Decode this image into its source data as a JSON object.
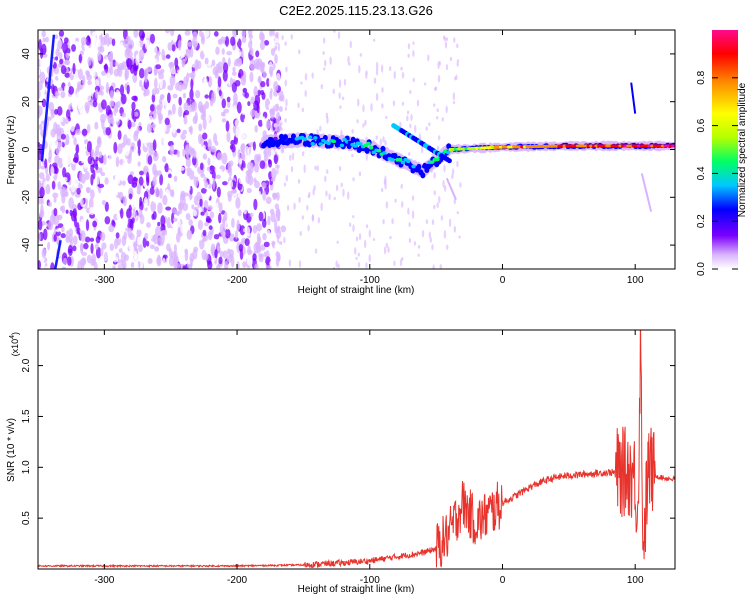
{
  "title": "C2E2.2025.115.23.13.G26",
  "chart_data": [
    {
      "type": "heatmap",
      "xlabel": "Height of straight line (km)",
      "ylabel": "Frequency (Hz)",
      "xlim": [
        -350,
        130
      ],
      "ylim": [
        -50,
        50
      ],
      "xticks": [
        -300,
        -200,
        -100,
        0,
        100
      ],
      "yticks": [
        -40,
        -20,
        0,
        20,
        40
      ],
      "colorbar": {
        "label": "Normalized spectral amplitude",
        "range": [
          0,
          1
        ],
        "ticks": [
          "0.0",
          "0.2",
          "0.4",
          "0.6",
          "0.8"
        ],
        "colors": [
          "#ffffff",
          "#d9b3ff",
          "#7a00ff",
          "#0000ff",
          "#00c8ff",
          "#00ff64",
          "#b4ff00",
          "#ffff00",
          "#ff8c00",
          "#ff0000",
          "#ff0a8c"
        ]
      },
      "signal_trace": [
        {
          "x": -180,
          "y": 3,
          "amp": 0.3
        },
        {
          "x": -150,
          "y": 4,
          "amp": 0.35
        },
        {
          "x": -120,
          "y": 3,
          "amp": 0.4
        },
        {
          "x": -100,
          "y": 1,
          "amp": 0.45
        },
        {
          "x": -80,
          "y": -4,
          "amp": 0.4
        },
        {
          "x": -60,
          "y": -9,
          "amp": 0.35
        },
        {
          "x": -40,
          "y": 0,
          "amp": 0.5
        },
        {
          "x": 0,
          "y": 1,
          "amp": 0.75
        },
        {
          "x": 50,
          "y": 1.5,
          "amp": 0.85
        },
        {
          "x": 100,
          "y": 1.5,
          "amp": 0.9
        },
        {
          "x": 130,
          "y": 1.5,
          "amp": 0.9
        }
      ]
    },
    {
      "type": "line",
      "xlabel": "Height of straight line (km)",
      "ylabel": "SNR (10 * v/v)",
      "yscale_label": "(x10",
      "yscale_exp": "4",
      "xlim": [
        -350,
        130
      ],
      "ylim": [
        0,
        2.35
      ],
      "xticks": [
        -300,
        -200,
        -100,
        0,
        100
      ],
      "yticks": [
        "0.5",
        "1.0",
        "1.5",
        "2.0"
      ],
      "series": [
        {
          "color": "#e8332c",
          "x": [
            -350,
            -300,
            -250,
            -200,
            -150,
            -120,
            -100,
            -80,
            -60,
            -50,
            -40,
            -35,
            -30,
            -25,
            -20,
            -10,
            0,
            10,
            20,
            30,
            40,
            50,
            60,
            70,
            80,
            90,
            95,
            100,
            102,
            104,
            106,
            110,
            115,
            120,
            130
          ],
          "values": [
            0.03,
            0.03,
            0.03,
            0.03,
            0.04,
            0.06,
            0.08,
            0.12,
            0.16,
            0.2,
            0.35,
            0.5,
            0.65,
            0.55,
            0.45,
            0.55,
            0.65,
            0.72,
            0.8,
            0.86,
            0.9,
            0.92,
            0.93,
            0.94,
            0.95,
            0.95,
            0.96,
            0.9,
            0.5,
            2.3,
            0.2,
            1.0,
            0.92,
            0.9,
            0.88
          ]
        }
      ]
    }
  ]
}
